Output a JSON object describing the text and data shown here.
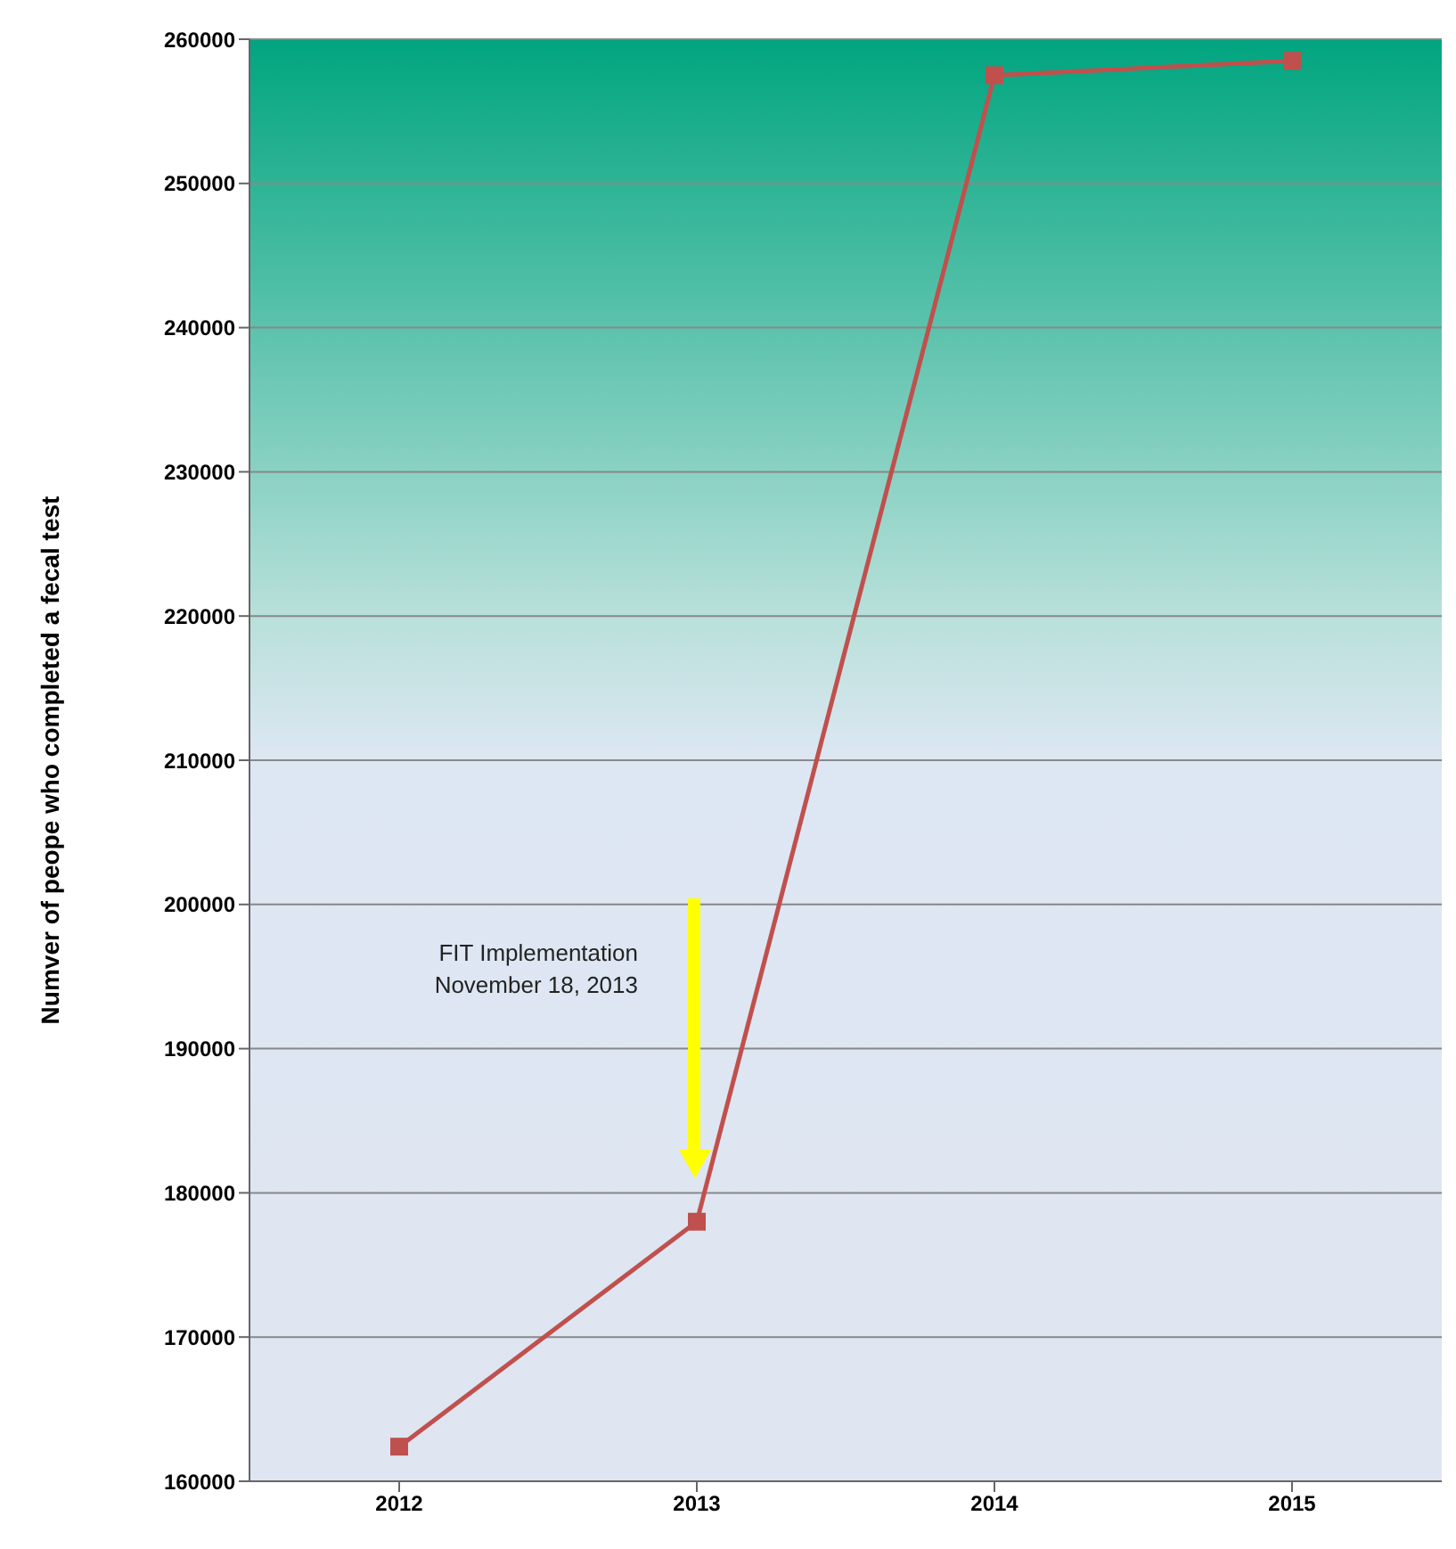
{
  "chart_data": {
    "type": "line",
    "ylabel": "Numver of peope who completed a fecal test",
    "categories": [
      "2012",
      "2013",
      "2014",
      "2015"
    ],
    "series": [
      {
        "color": "#c0504d",
        "values": [
          162400,
          178000,
          257500,
          258500
        ]
      }
    ],
    "ylim": [
      160000,
      260000
    ],
    "yticks": [
      160000,
      170000,
      180000,
      190000,
      200000,
      210000,
      220000,
      230000,
      240000,
      250000,
      260000
    ],
    "grid": "y",
    "marker": "square",
    "line_style": "solid",
    "legend": false,
    "annotations": [
      "FIT Implementation\nNovember 18, 2013"
    ]
  }
}
